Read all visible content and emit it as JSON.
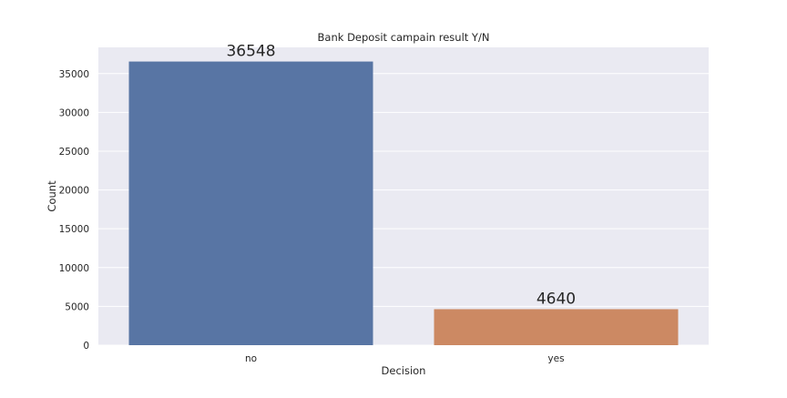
{
  "chart_data": {
    "type": "bar",
    "title": "Bank Deposit campain result Y/N",
    "xlabel": "Decision",
    "ylabel": "Count",
    "categories": [
      "no",
      "yes"
    ],
    "values": [
      36548,
      4640
    ],
    "data_labels": [
      "36548",
      "4640"
    ],
    "ylim": [
      0,
      38375
    ],
    "yticks": [
      0,
      5000,
      10000,
      15000,
      20000,
      25000,
      30000,
      35000
    ],
    "ytick_labels": [
      "0",
      "5000",
      "10000",
      "15000",
      "20000",
      "25000",
      "30000",
      "35000"
    ],
    "grid": true,
    "legend": "none",
    "colors": {
      "plot_background": "#eaeaf2",
      "grid": "#ffffff",
      "bars": [
        "#5875a4",
        "#cc8963"
      ]
    }
  }
}
